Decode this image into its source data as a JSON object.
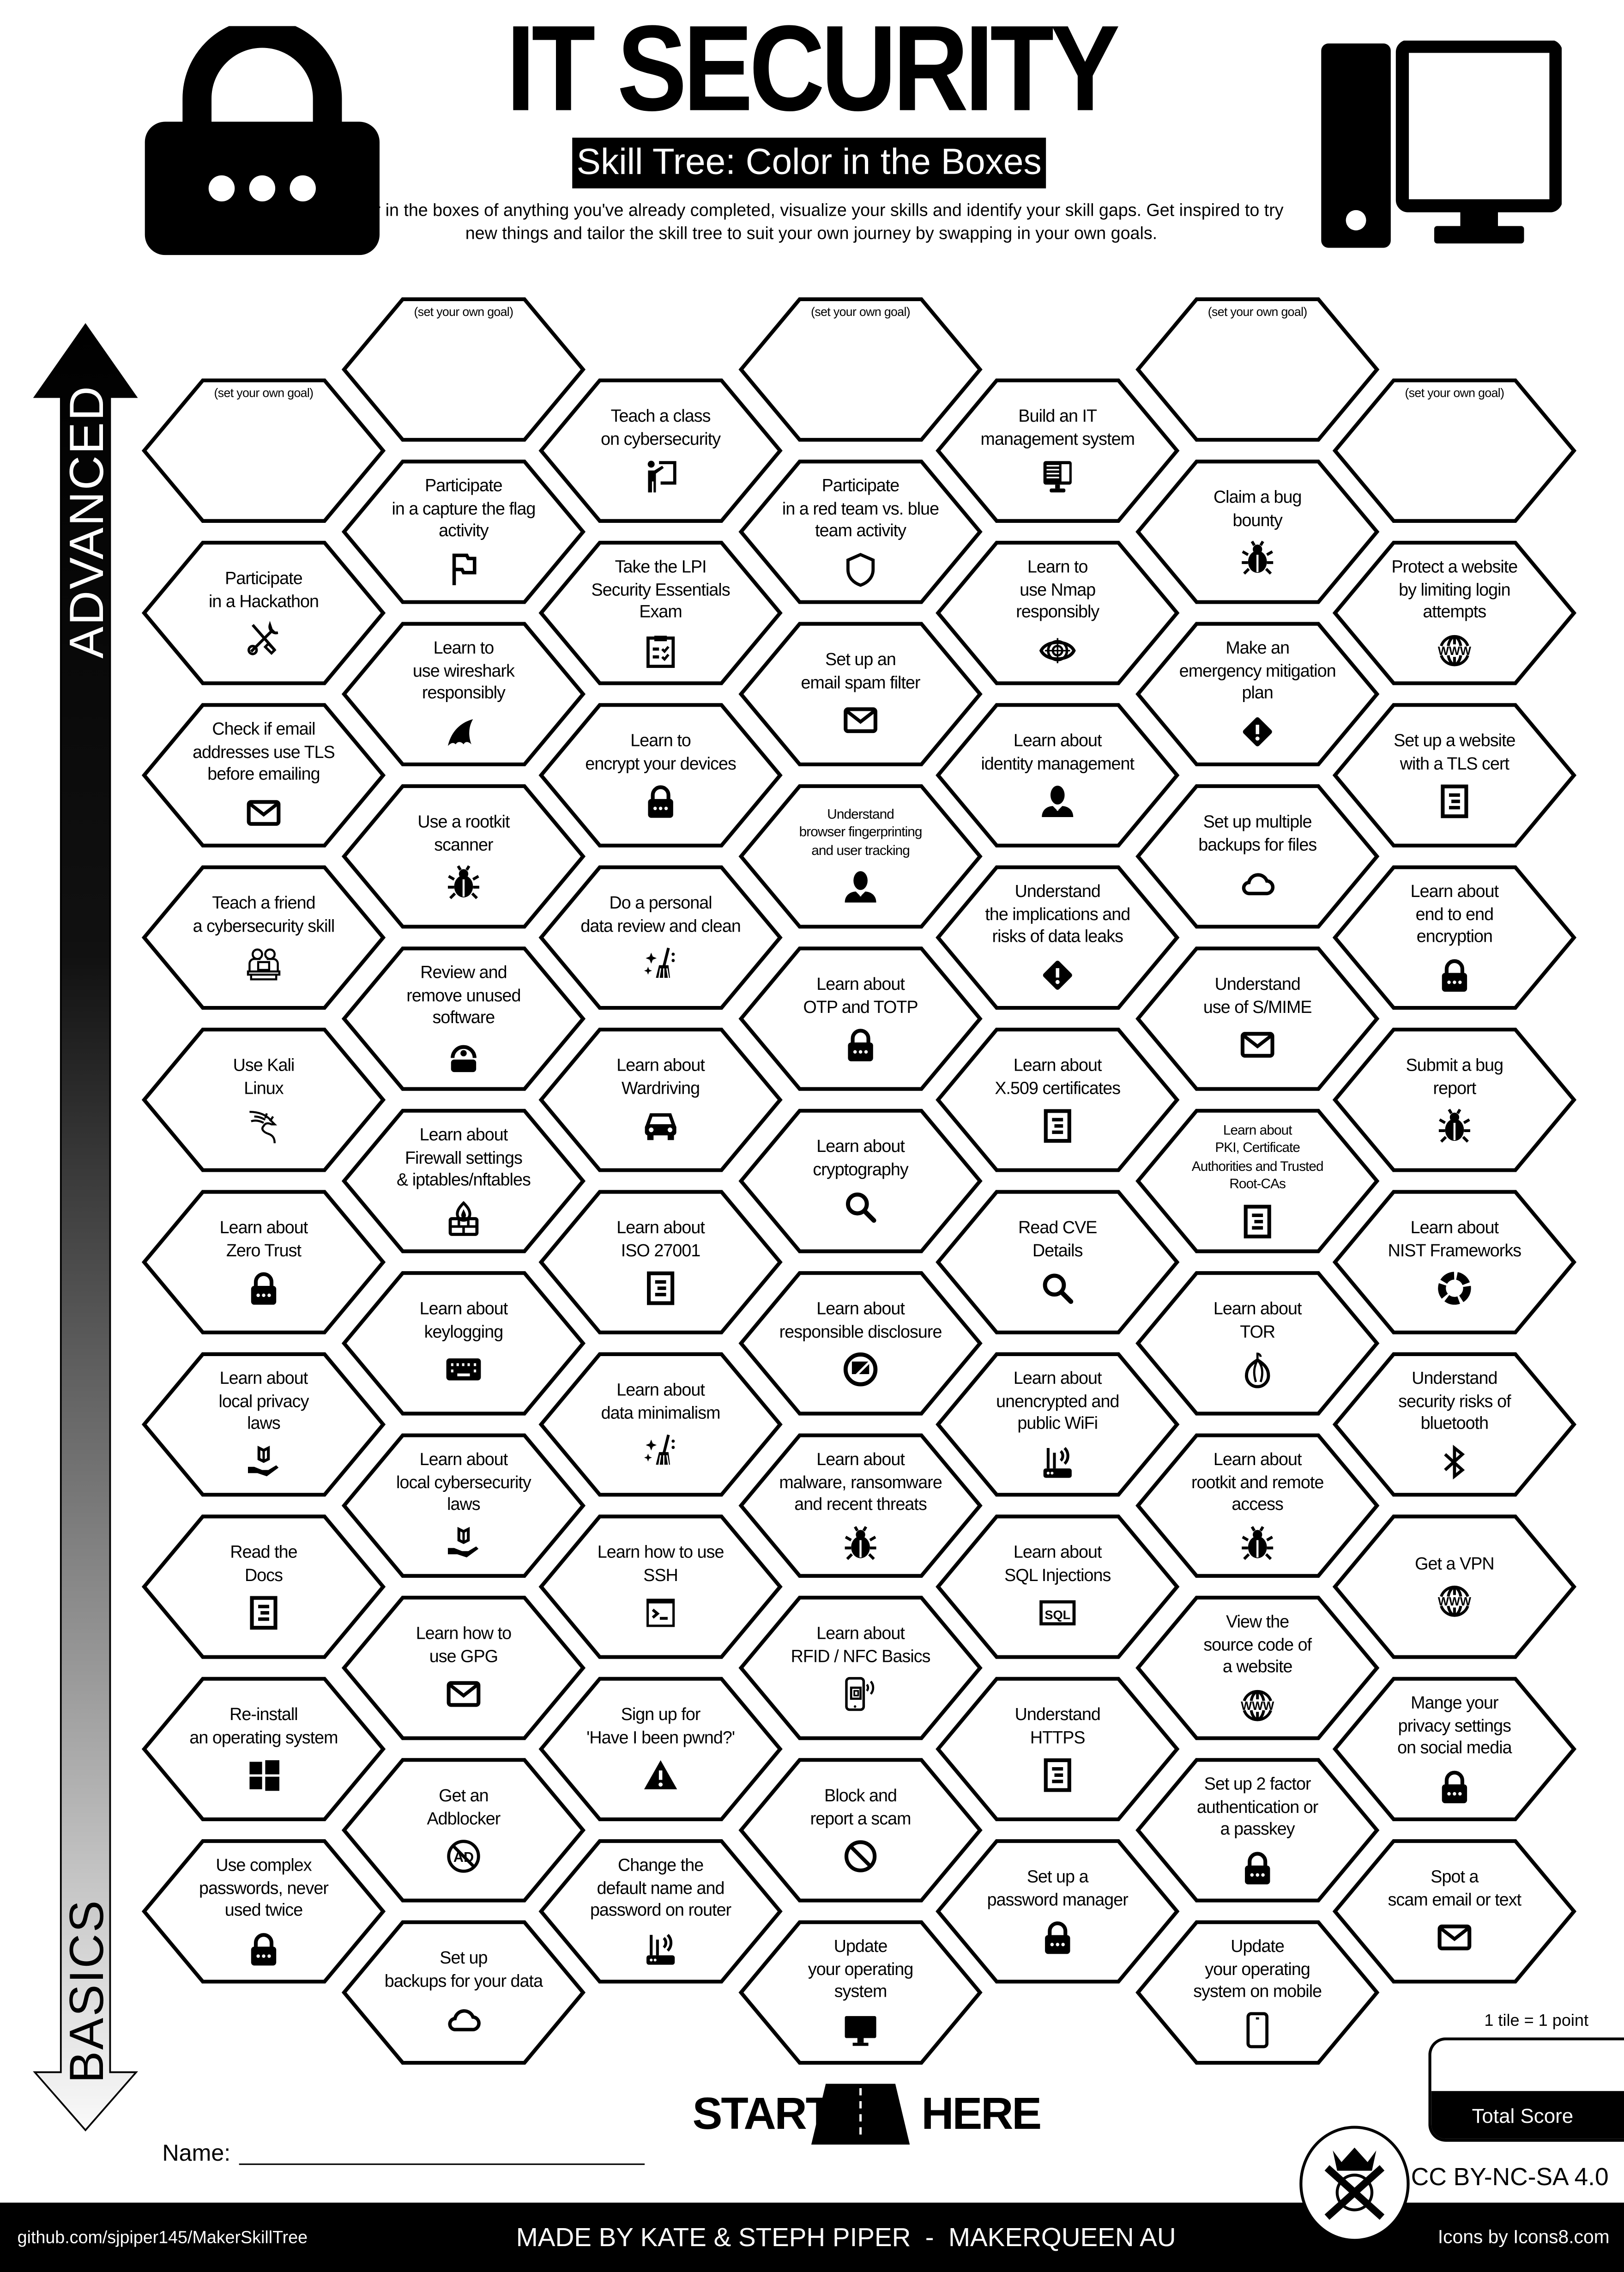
{
  "header": {
    "title": "IT SECURITY",
    "subtitle": "Skill Tree: Color in the Boxes",
    "description": "Color in the boxes of anything you've already completed, visualize your skills and identify your skill gaps.  Get inspired to try new things and tailor the skill tree to suit your own journey by swapping in your own goals.",
    "left_icon": "padlock-icon",
    "right_icon": "desktop-computer-icon"
  },
  "axis": {
    "top_label": "ADVANCED",
    "bottom_label": "BASICS"
  },
  "skill_tree": {
    "columns": [
      {
        "items": [
          {
            "label": "(set your own goal)",
            "goal": true
          },
          {
            "label": "Participate\nin a Hackathon",
            "icon": "tools"
          },
          {
            "label": "Check if email\naddresses use TLS\nbefore emailing",
            "icon": "mail"
          },
          {
            "label": "Teach a friend\na cybersecurity skill",
            "icon": "teaching"
          },
          {
            "label": "Use Kali\nLinux",
            "icon": "kali-dragon"
          },
          {
            "label": "Learn about\nZero Trust",
            "icon": "lock"
          },
          {
            "label": "Learn about\nlocal privacy\nlaws",
            "icon": "book-hand"
          },
          {
            "label": "Read the\nDocs",
            "icon": "document"
          },
          {
            "label": "Re-install\nan operating system",
            "icon": "windows"
          },
          {
            "label": "Use complex\npasswords, never\nused twice",
            "icon": "lock"
          }
        ]
      },
      {
        "items": [
          {
            "label": "(set your own goal)",
            "goal": true
          },
          {
            "label": "Participate\nin a capture the flag\nactivity",
            "icon": "flag"
          },
          {
            "label": "Learn to\nuse wireshark\nresponsibly",
            "icon": "shark-fin"
          },
          {
            "label": "Use a rootkit\nscanner",
            "icon": "bug"
          },
          {
            "label": "Review and\nremove unused\nsoftware",
            "icon": "privacy-lock"
          },
          {
            "label": "Learn about\nFirewall settings\n& iptables/nftables",
            "icon": "firewall"
          },
          {
            "label": "Learn about\nkeylogging",
            "icon": "keyboard"
          },
          {
            "label": "Learn about\nlocal cybersecurity\nlaws",
            "icon": "book-hand"
          },
          {
            "label": "Learn how to\nuse GPG",
            "icon": "mail"
          },
          {
            "label": "Get an\nAdblocker",
            "icon": "no-ads"
          },
          {
            "label": "Set up\nbackups for your data",
            "icon": "cloud"
          }
        ]
      },
      {
        "items": [
          {
            "label": "Teach a class\non cybersecurity",
            "icon": "presenter"
          },
          {
            "label": "Take the LPI\nSecurity Essentials\nExam",
            "icon": "clipboard"
          },
          {
            "label": "Learn to\nencrypt your devices",
            "icon": "lock"
          },
          {
            "label": "Do a personal\ndata review and clean",
            "icon": "broom"
          },
          {
            "label": "Learn about\nWardriving",
            "icon": "car"
          },
          {
            "label": "Learn about\nISO 27001",
            "icon": "document"
          },
          {
            "label": "Learn about\ndata minimalism",
            "icon": "broom"
          },
          {
            "label": "Learn how to use\nSSH",
            "icon": "terminal"
          },
          {
            "label": "Sign up for\n'Have I been pwnd?'",
            "icon": "warning-triangle"
          },
          {
            "label": "Change the\ndefault name and\npassword on router",
            "icon": "router"
          }
        ]
      },
      {
        "items": [
          {
            "label": "(set your own goal)",
            "goal": true
          },
          {
            "label": "Participate\nin a red team vs. blue\nteam activity",
            "icon": "shield"
          },
          {
            "label": "Set up an\nemail spam filter",
            "icon": "mail"
          },
          {
            "label": "Understand\nbrowser fingerprinting\nand user tracking",
            "icon": "user",
            "small": true
          },
          {
            "label": "Learn about\nOTP and TOTP",
            "icon": "lock"
          },
          {
            "label": "Learn about\ncryptography",
            "icon": "search"
          },
          {
            "label": "Learn about\nresponsible disclosure",
            "icon": "no-chat"
          },
          {
            "label": "Learn about\nmalware, ransomware\nand recent threats",
            "icon": "bug"
          },
          {
            "label": "Learn about\nRFID / NFC Basics",
            "icon": "phone-nfc"
          },
          {
            "label": "Block and\nreport a scam",
            "icon": "block"
          },
          {
            "label": "Update\nyour operating\nsystem",
            "icon": "monitor"
          }
        ]
      },
      {
        "items": [
          {
            "label": "Build an IT\nmanagement system",
            "icon": "computer"
          },
          {
            "label": "Learn to\nuse Nmap\nresponsibly",
            "icon": "eye-target"
          },
          {
            "label": "Learn about\nidentity management",
            "icon": "user"
          },
          {
            "label": "Understand\nthe implications and\nrisks of data leaks",
            "icon": "warning-diamond"
          },
          {
            "label": "Learn about\nX.509 certificates",
            "icon": "document"
          },
          {
            "label": "Read CVE\nDetails",
            "icon": "search"
          },
          {
            "label": "Learn about\nunencrypted and\npublic WiFi",
            "icon": "router"
          },
          {
            "label": "Learn about\nSQL Injections",
            "icon": "sql"
          },
          {
            "label": "Understand\nHTTPS",
            "icon": "document"
          },
          {
            "label": "Set up a\npassword manager",
            "icon": "lock"
          }
        ]
      },
      {
        "items": [
          {
            "label": "(set your own goal)",
            "goal": true
          },
          {
            "label": "Claim a bug\nbounty",
            "icon": "bug"
          },
          {
            "label": "Make an\nemergency mitigation\nplan",
            "icon": "warning-diamond"
          },
          {
            "label": "Set up multiple\nbackups for files",
            "icon": "cloud"
          },
          {
            "label": "Understand\nuse of S/MIME",
            "icon": "mail"
          },
          {
            "label": "Learn about\nPKI, Certificate\nAuthorities and Trusted\nRoot-CAs",
            "icon": "document",
            "small": true
          },
          {
            "label": "Learn about\nTOR",
            "icon": "onion"
          },
          {
            "label": "Learn about\nrootkit and remote\naccess",
            "icon": "bug"
          },
          {
            "label": "View the\nsource code of\na website",
            "icon": "www"
          },
          {
            "label": "Set up 2 factor\nauthentication or\na passkey",
            "icon": "lock"
          },
          {
            "label": "Update\nyour operating\nsystem on mobile",
            "icon": "phone"
          }
        ]
      },
      {
        "items": [
          {
            "label": "(set your own goal)",
            "goal": true
          },
          {
            "label": "Protect a website\nby limiting login\nattempts",
            "icon": "www"
          },
          {
            "label": "Set up a website\nwith a TLS cert",
            "icon": "document"
          },
          {
            "label": "Learn about\nend to end\nencryption",
            "icon": "lock"
          },
          {
            "label": "Submit a bug\nreport",
            "icon": "bug"
          },
          {
            "label": "Learn about\nNIST Frameworks",
            "icon": "cycle-ring"
          },
          {
            "label": "Understand\nsecurity risks of\nbluetooth",
            "icon": "bluetooth"
          },
          {
            "label": "Get a VPN",
            "icon": "www"
          },
          {
            "label": "Mange your\nprivacy settings\non social media",
            "icon": "lock"
          },
          {
            "label": "Spot a\nscam email or text",
            "icon": "mail"
          }
        ]
      }
    ]
  },
  "start": {
    "left": "START",
    "right": "HERE",
    "icon": "road-icon"
  },
  "name_field": {
    "label": "Name:",
    "value": ""
  },
  "score": {
    "rule": "1 tile = 1 point",
    "label": "Total Score",
    "value": ""
  },
  "license": "CC BY-NC-SA 4.0",
  "footer": {
    "repo": "github.com/sjpiper145/MakerSkillTree",
    "credit": "MADE BY KATE & STEPH PIPER  -  MAKERQUEEN AU",
    "icons_credit": "Icons by Icons8.com"
  }
}
